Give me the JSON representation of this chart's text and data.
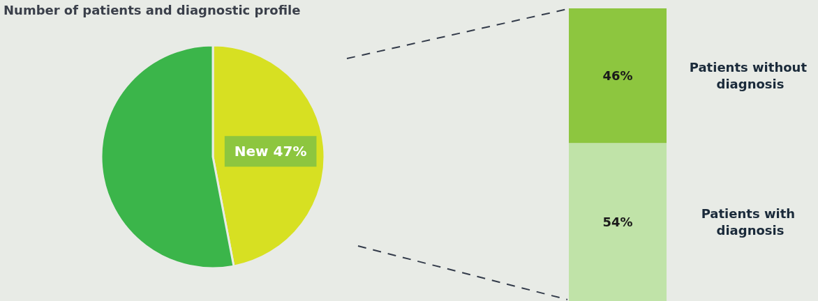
{
  "chart_data": [
    {
      "type": "pie",
      "title": "Number of patients and diagnostic profile",
      "categories": [
        "New",
        null
      ],
      "values": [
        47,
        53
      ],
      "colors": [
        "#d7e022",
        "#3bb54a"
      ],
      "value_labels": [
        "47%",
        null
      ]
    },
    {
      "type": "bar",
      "stacked": true,
      "categories": [
        null
      ],
      "ylim": [
        0,
        100
      ],
      "tick_labels": false,
      "legend": false,
      "series": [
        {
          "name": "Patients with diagnosis",
          "color": "#c0e3a8",
          "values": [
            54
          ],
          "value_labels": [
            "54%"
          ]
        },
        {
          "name": "Patients without diagnosis",
          "color": "#8dc63f",
          "values": [
            46
          ],
          "value_labels": [
            "46%"
          ]
        }
      ]
    }
  ]
}
